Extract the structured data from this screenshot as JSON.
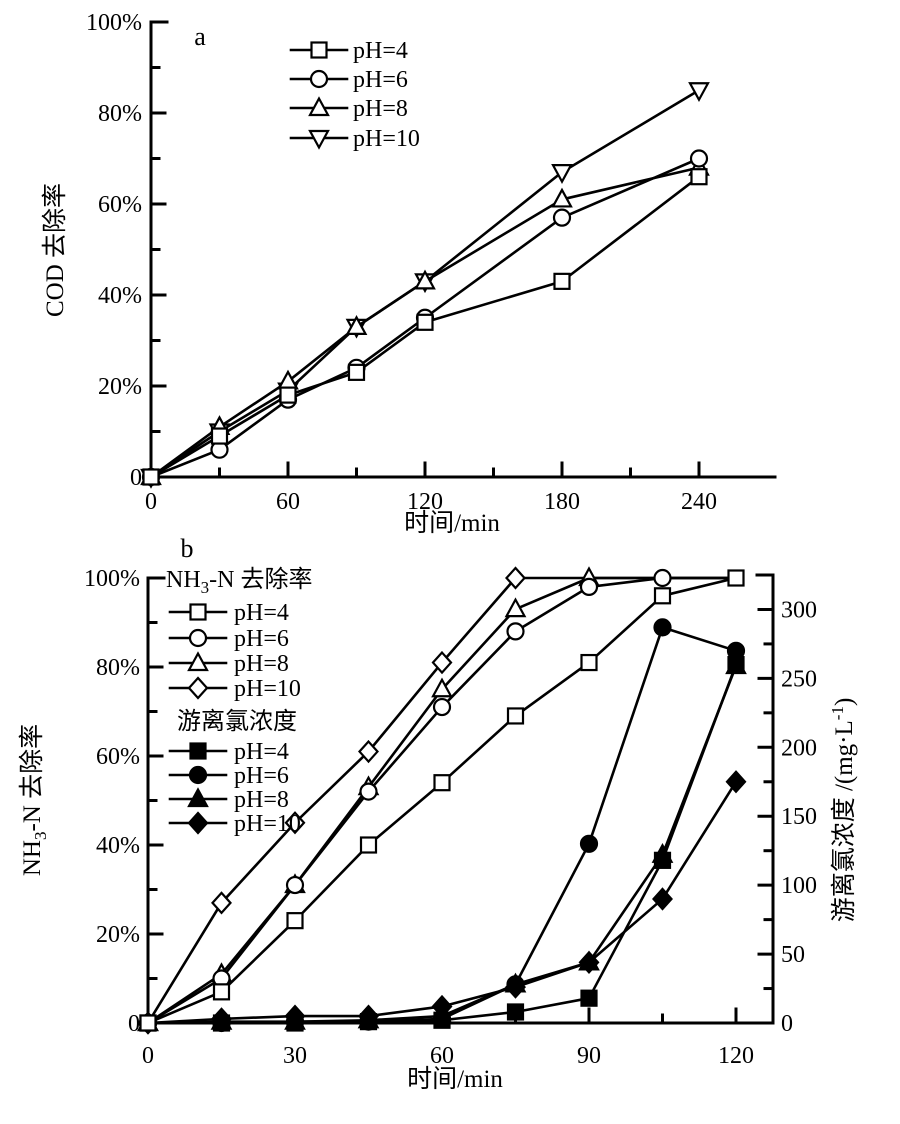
{
  "figure": {
    "background_color": "#ffffff",
    "ink_color": "#000000",
    "panel_labels": [
      "a",
      "b"
    ]
  },
  "chart_data": [
    {
      "type": "line",
      "panel_label": "a",
      "title": "",
      "xlabel": "时间/min",
      "ylabel": "COD 去除率",
      "x": [
        0,
        30,
        60,
        90,
        120,
        180,
        240
      ],
      "xlim": [
        0,
        273
      ],
      "ylim": [
        0,
        100
      ],
      "x_major_ticks": [
        0,
        60,
        120,
        180,
        240
      ],
      "x_major_labels": [
        "0",
        "60",
        "120",
        "180",
        "240"
      ],
      "x_minor_ticks": [
        30,
        90,
        150,
        210
      ],
      "y_major_ticks": [
        0,
        20,
        40,
        60,
        80,
        100
      ],
      "y_major_labels": [
        "0",
        "20%",
        "40%",
        "60%",
        "80%",
        "100%"
      ],
      "y_minor_ticks": [
        10,
        30,
        50,
        70,
        90
      ],
      "grid": false,
      "legend_position": "inside-top-left",
      "legend_entries": [
        {
          "name": "pH=4",
          "marker": "square",
          "fill": "open"
        },
        {
          "name": "pH=6",
          "marker": "circle",
          "fill": "open"
        },
        {
          "name": "pH=8",
          "marker": "triangle-up",
          "fill": "open"
        },
        {
          "name": "pH=10",
          "marker": "triangle-down",
          "fill": "open"
        }
      ],
      "series": [
        {
          "name": "pH=4",
          "marker": "square",
          "fill": "open",
          "values": [
            0,
            9,
            18,
            23,
            34,
            43,
            66
          ]
        },
        {
          "name": "pH=6",
          "marker": "circle",
          "fill": "open",
          "values": [
            0,
            6,
            17,
            24,
            35,
            57,
            70
          ]
        },
        {
          "name": "pH=8",
          "marker": "triangle-up",
          "fill": "open",
          "values": [
            0,
            11,
            21,
            33,
            43,
            61,
            68
          ]
        },
        {
          "name": "pH=10",
          "marker": "triangle-down",
          "fill": "open",
          "values": [
            0,
            10,
            19,
            33,
            43,
            67,
            85
          ]
        }
      ]
    },
    {
      "type": "line",
      "panel_label": "b",
      "title": "",
      "xlabel": "时间/min",
      "ylabel_left": "NH3-N 去除率",
      "ylabel_left_segments": [
        {
          "text": "NH"
        },
        {
          "text": "3",
          "script": "sub"
        },
        {
          "text": "-N 去除率"
        }
      ],
      "ylabel_right": "游离氯浓度/(mg·L-1)",
      "ylabel_right_segments": [
        {
          "text": "游离氯浓度 /(mg·L"
        },
        {
          "text": "-1",
          "script": "sup"
        },
        {
          "text": ")"
        }
      ],
      "x": [
        0,
        15,
        30,
        45,
        60,
        75,
        90,
        105,
        120
      ],
      "xlim": [
        0,
        128
      ],
      "ylim_left": [
        0,
        100
      ],
      "ylim_right": [
        0,
        325
      ],
      "x_major_ticks": [
        0,
        30,
        60,
        90,
        120
      ],
      "x_major_labels": [
        "0",
        "30",
        "60",
        "90",
        "120"
      ],
      "x_minor_ticks": [
        15,
        45,
        75,
        105
      ],
      "y_left_major_ticks": [
        0,
        20,
        40,
        60,
        80,
        100
      ],
      "y_left_major_labels": [
        "0",
        "20%",
        "40%",
        "60%",
        "80%",
        "100%"
      ],
      "y_left_minor_ticks": [
        10,
        30,
        50,
        70,
        90
      ],
      "y_right_major_ticks": [
        0,
        50,
        100,
        150,
        200,
        250,
        300
      ],
      "y_right_major_labels": [
        "0",
        "50",
        "100",
        "150",
        "200",
        "250",
        "300"
      ],
      "y_right_minor_ticks": [
        25,
        75,
        125,
        175,
        225,
        275
      ],
      "grid": false,
      "legend_position": "inside-top-left",
      "legend_groups": [
        {
          "header": "NH3-N 去除率",
          "header_segments": [
            {
              "text": "NH"
            },
            {
              "text": "3",
              "script": "sub"
            },
            {
              "text": "-N 去除率"
            }
          ],
          "entries": [
            {
              "name": "pH=4",
              "marker": "square",
              "fill": "open"
            },
            {
              "name": "pH=6",
              "marker": "circle",
              "fill": "open"
            },
            {
              "name": "pH=8",
              "marker": "triangle-up",
              "fill": "open"
            },
            {
              "name": "pH=10",
              "marker": "diamond",
              "fill": "open"
            }
          ]
        },
        {
          "header": "游离氯浓度",
          "header_segments": [
            {
              "text": "游离氯浓度"
            }
          ],
          "entries": [
            {
              "name": "pH=4",
              "marker": "square",
              "fill": "filled"
            },
            {
              "name": "pH=6",
              "marker": "circle",
              "fill": "filled"
            },
            {
              "name": "pH=8",
              "marker": "triangle-up",
              "fill": "filled"
            },
            {
              "name": "pH=10",
              "marker": "diamond",
              "fill": "filled"
            }
          ]
        }
      ],
      "series": [
        {
          "group": "NH3-N removal",
          "axis": "left",
          "name": "pH=4",
          "marker": "square",
          "fill": "open",
          "suppress_repeated_max_markers": true,
          "values": [
            0,
            7,
            23,
            40,
            54,
            69,
            81,
            96,
            100
          ]
        },
        {
          "group": "NH3-N removal",
          "axis": "left",
          "name": "pH=6",
          "marker": "circle",
          "fill": "open",
          "suppress_repeated_max_markers": true,
          "values": [
            0,
            10,
            31,
            52,
            71,
            88,
            98,
            100,
            100
          ]
        },
        {
          "group": "NH3-N removal",
          "axis": "left",
          "name": "pH=8",
          "marker": "triangle-up",
          "fill": "open",
          "suppress_repeated_max_markers": true,
          "values": [
            0,
            11,
            31,
            53,
            75,
            93,
            100,
            100,
            100
          ]
        },
        {
          "group": "NH3-N removal",
          "axis": "left",
          "name": "pH=10",
          "marker": "diamond",
          "fill": "open",
          "suppress_repeated_max_markers": true,
          "values": [
            0,
            27,
            45,
            61,
            81,
            100,
            100,
            100,
            100
          ]
        },
        {
          "group": "free chlorine",
          "axis": "right",
          "name": "pH=4",
          "marker": "square",
          "fill": "filled",
          "values": [
            0,
            0,
            0,
            1,
            2,
            8,
            18,
            118,
            260
          ]
        },
        {
          "group": "free chlorine",
          "axis": "right",
          "name": "pH=6",
          "marker": "circle",
          "fill": "filled",
          "values": [
            0,
            0,
            1,
            1,
            3,
            28,
            130,
            287,
            270
          ]
        },
        {
          "group": "free chlorine",
          "axis": "right",
          "name": "pH=8",
          "marker": "triangle-up",
          "fill": "filled",
          "values": [
            0,
            1,
            1,
            2,
            5,
            28,
            44,
            122,
            259
          ]
        },
        {
          "group": "free chlorine",
          "axis": "right",
          "name": "pH=10",
          "marker": "diamond",
          "fill": "filled",
          "values": [
            0,
            3,
            5,
            5,
            12,
            26,
            44,
            90,
            175
          ]
        }
      ]
    }
  ]
}
